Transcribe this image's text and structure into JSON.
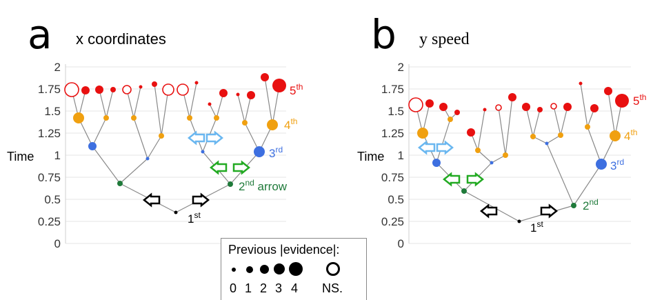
{
  "panels": {
    "a": {
      "letter": "a",
      "title": "x coordinates"
    },
    "b": {
      "letter": "b",
      "title": "y speed"
    }
  },
  "colors": {
    "gen1": "#000000",
    "gen2": "#1f7a3a",
    "gen3": "#3d6fe0",
    "gen4": "#f0a010",
    "gen5": "#e81010",
    "edge": "#888888",
    "arrow_black": "#000000",
    "arrow_green": "#22aa22",
    "arrow_blue": "#6ab7f0"
  },
  "legend": {
    "title": "Previous |evidence|:",
    "levels": [
      "0",
      "1",
      "2",
      "3",
      "4"
    ],
    "ns_label": "NS."
  },
  "chart_data": [
    {
      "type": "scatter",
      "panel": "a",
      "ylabel": "Time",
      "ylim": [
        0,
        2
      ],
      "yticks": [
        "0",
        "0.25",
        "0.5",
        "0.75",
        "1",
        "1.25",
        "1.5",
        "1.75",
        "2"
      ],
      "grid": true,
      "annotations": [
        {
          "gen": 1,
          "num": "1",
          "sup": "st",
          "suffix": ""
        },
        {
          "gen": 2,
          "num": "2",
          "sup": "nd",
          "suffix": " arrow"
        },
        {
          "gen": 3,
          "num": "3",
          "sup": "rd",
          "suffix": ""
        },
        {
          "gen": 4,
          "num": "4",
          "sup": "th",
          "suffix": ""
        },
        {
          "gen": 5,
          "num": "5",
          "sup": "th",
          "suffix": ""
        }
      ]
    },
    {
      "type": "scatter",
      "panel": "b",
      "ylabel": "Time",
      "ylim": [
        0,
        2
      ],
      "yticks": [
        "0",
        "0.25",
        "0.5",
        "0.75",
        "1",
        "1.25",
        "1.5",
        "1.75",
        "2"
      ],
      "grid": true,
      "annotations": [
        {
          "gen": 1,
          "num": "1",
          "sup": "st",
          "suffix": ""
        },
        {
          "gen": 2,
          "num": "2",
          "sup": "nd",
          "suffix": ""
        },
        {
          "gen": 3,
          "num": "3",
          "sup": "rd",
          "suffix": ""
        },
        {
          "gen": 4,
          "num": "4",
          "sup": "th",
          "suffix": ""
        },
        {
          "gen": 5,
          "num": "5",
          "sup": "th",
          "suffix": ""
        }
      ]
    }
  ]
}
